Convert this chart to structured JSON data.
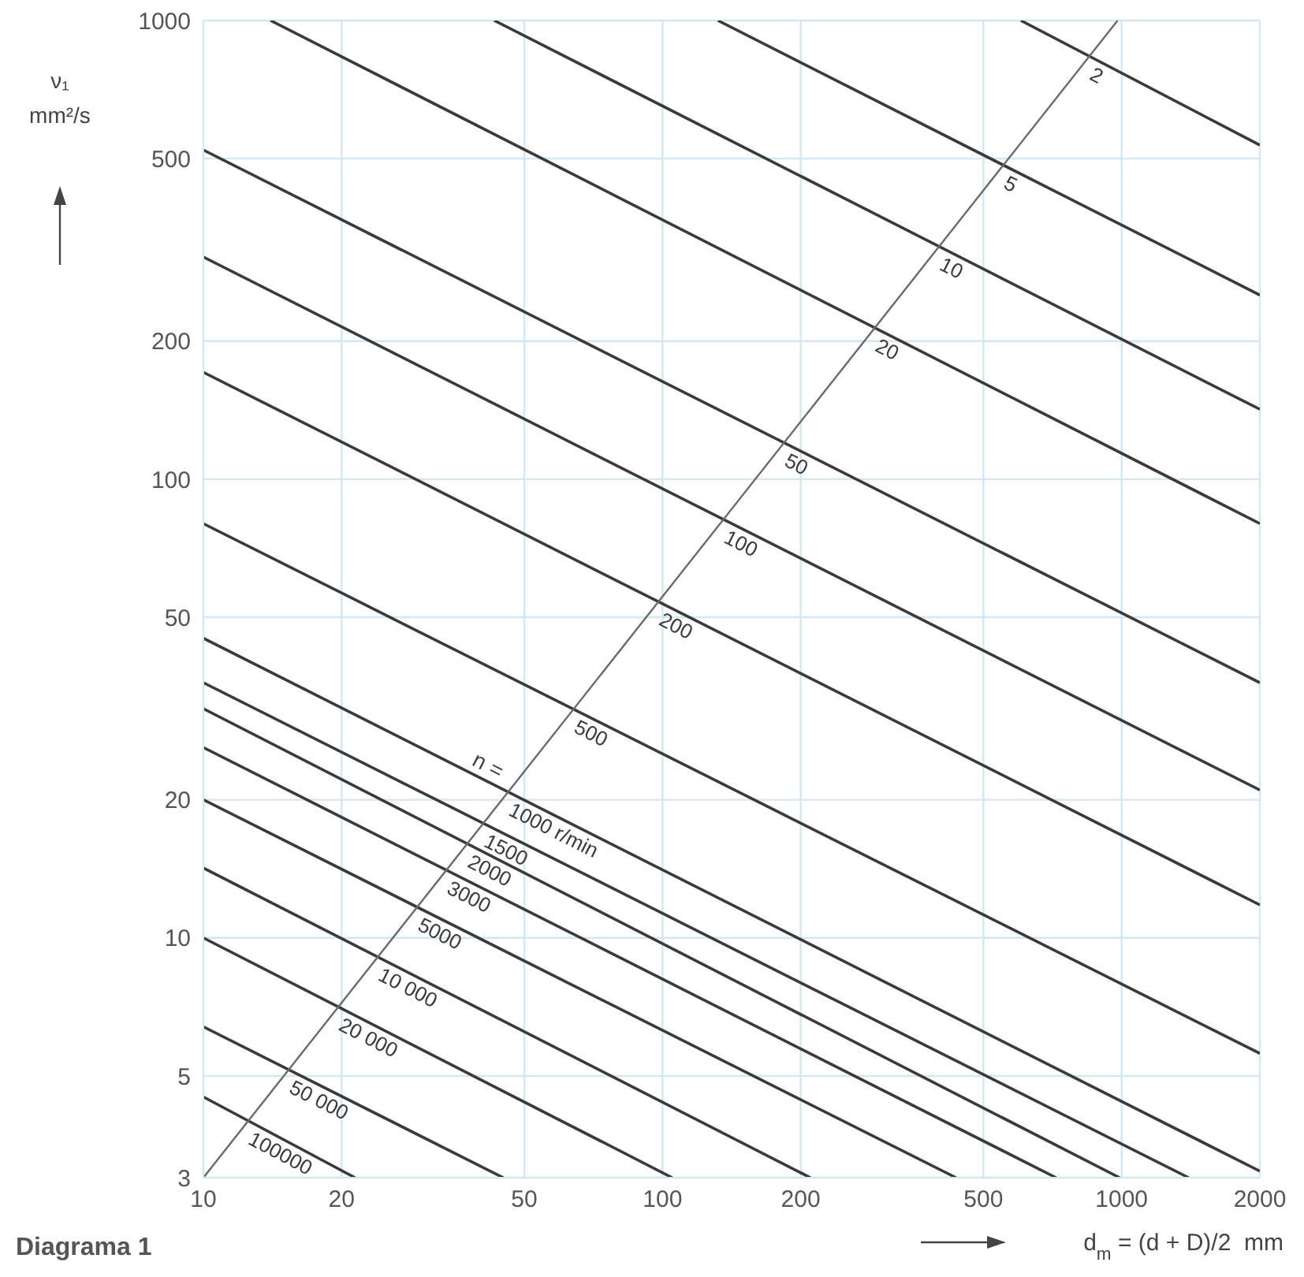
{
  "chart_data": {
    "type": "line",
    "title": "Diagrama 1",
    "xlabel": "d$_{m}$ = (d + D)/2  mm",
    "ylabel": "ν₁ mm²/s",
    "log": "xy",
    "grid": true,
    "marker": "none",
    "line_style": "solid",
    "xlim": [
      10,
      2000
    ],
    "xticks": [
      10,
      20,
      50,
      100,
      200,
      500,
      1000,
      2000
    ],
    "ylim": [
      3,
      1000
    ],
    "yticks": [
      3,
      5,
      10,
      20,
      50,
      100,
      200,
      500,
      1000
    ],
    "annotations": [
      {
        "text": "n =",
        "x": 41,
        "y": 23
      }
    ],
    "series": [
      {
        "name": "2",
        "color": "#3a3a3a",
        "x": [
          603,
          2000
        ],
        "values": [
          1000,
          535
        ]
      },
      {
        "name": "5",
        "color": "#3a3a3a",
        "x": [
          132,
          2000
        ],
        "values": [
          1000,
          252
        ]
      },
      {
        "name": "10",
        "color": "#3a3a3a",
        "x": [
          43,
          2000
        ],
        "values": [
          1000,
          142
        ]
      },
      {
        "name": "20",
        "color": "#3a3a3a",
        "x": [
          14,
          2000
        ],
        "values": [
          1000,
          80
        ]
      },
      {
        "name": "50",
        "color": "#3a3a3a",
        "x": [
          10,
          2000
        ],
        "values": [
          522,
          36
        ]
      },
      {
        "name": "100",
        "color": "#3a3a3a",
        "x": [
          10,
          2000
        ],
        "values": [
          305,
          21
        ]
      },
      {
        "name": "200",
        "color": "#3a3a3a",
        "x": [
          10,
          2000
        ],
        "values": [
          171,
          11.8
        ]
      },
      {
        "name": "500",
        "color": "#3a3a3a",
        "x": [
          10,
          2000
        ],
        "values": [
          80,
          5.6
        ]
      },
      {
        "name": "1000 r/min",
        "color": "#3a3a3a",
        "x": [
          10,
          2000
        ],
        "values": [
          45,
          3.1
        ]
      },
      {
        "name": "1500",
        "color": "#3a3a3a",
        "x": [
          10,
          1400
        ],
        "values": [
          36,
          3
        ]
      },
      {
        "name": "2000",
        "color": "#3a3a3a",
        "x": [
          10,
          990
        ],
        "values": [
          31.6,
          3
        ]
      },
      {
        "name": "3000",
        "color": "#3a3a3a",
        "x": [
          10,
          720
        ],
        "values": [
          26,
          3
        ]
      },
      {
        "name": "5000",
        "color": "#3a3a3a",
        "x": [
          10,
          436
        ],
        "values": [
          20,
          3
        ]
      },
      {
        "name": "10 000",
        "color": "#3a3a3a",
        "x": [
          10,
          210
        ],
        "values": [
          14.2,
          3
        ]
      },
      {
        "name": "20 000",
        "color": "#3a3a3a",
        "x": [
          10,
          105
        ],
        "values": [
          10,
          3
        ]
      },
      {
        "name": "50 000",
        "color": "#3a3a3a",
        "x": [
          10,
          45
        ],
        "values": [
          6.4,
          3
        ]
      },
      {
        "name": "100000",
        "color": "#3a3a3a",
        "x": [
          10,
          21.4
        ],
        "values": [
          4.5,
          3
        ]
      },
      {
        "color": "#6a6a6a",
        "x": [
          10,
          980
        ],
        "values": [
          3,
          1000
        ]
      }
    ]
  }
}
